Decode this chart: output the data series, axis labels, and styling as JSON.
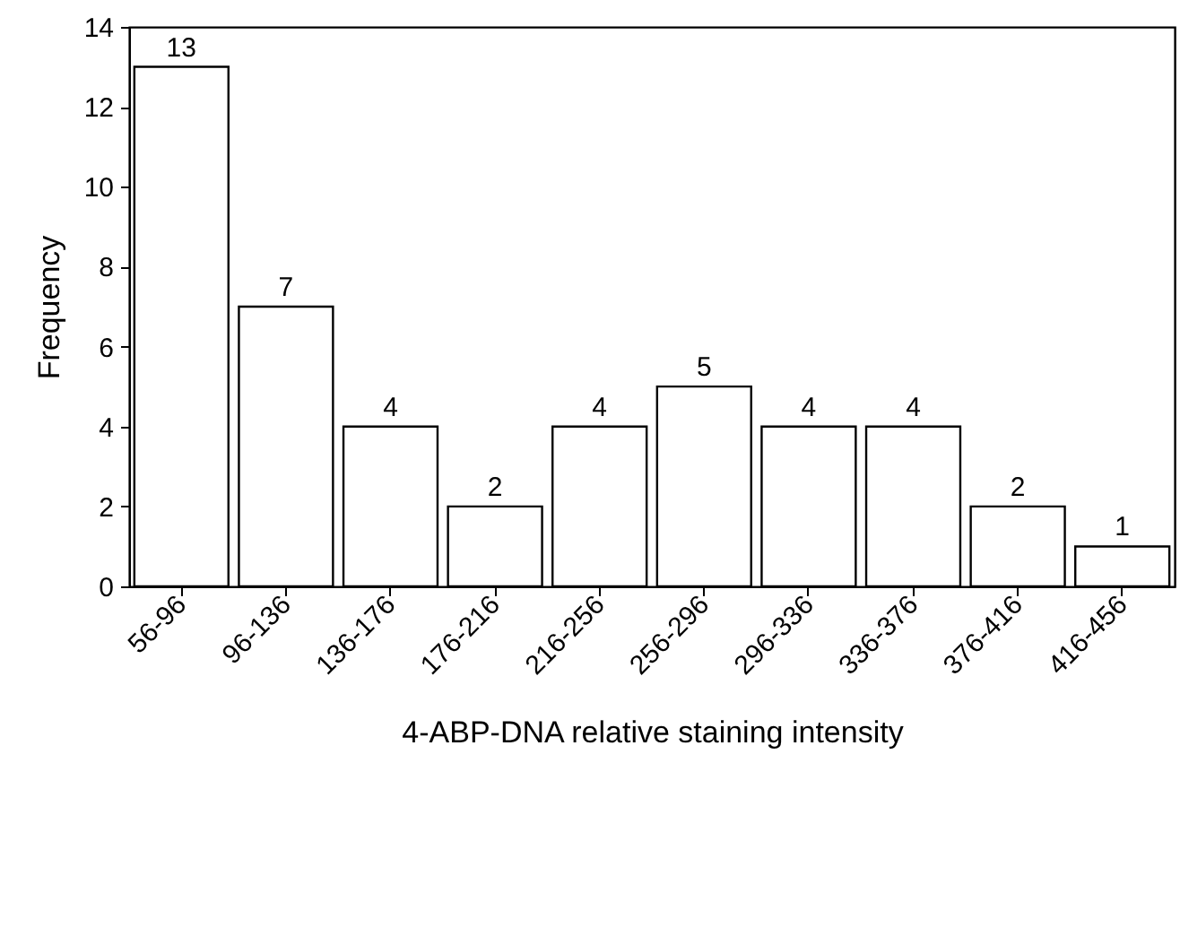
{
  "chart_data": {
    "type": "bar",
    "xlabel": "4-ABP-DNA relative staining intensity",
    "ylabel": "Frequency",
    "categories": [
      "56-96",
      "96-136",
      "136-176",
      "176-216",
      "216-256",
      "256-296",
      "296-336",
      "336-376",
      "376-416",
      "416-456"
    ],
    "values": [
      13,
      7,
      4,
      2,
      4,
      5,
      4,
      4,
      2,
      1
    ],
    "color": "#ffffff",
    "ylim": [
      0,
      14
    ],
    "yticks": [
      0,
      2,
      4,
      6,
      8,
      10,
      12,
      14
    ],
    "grid": false,
    "data_labels": true
  }
}
